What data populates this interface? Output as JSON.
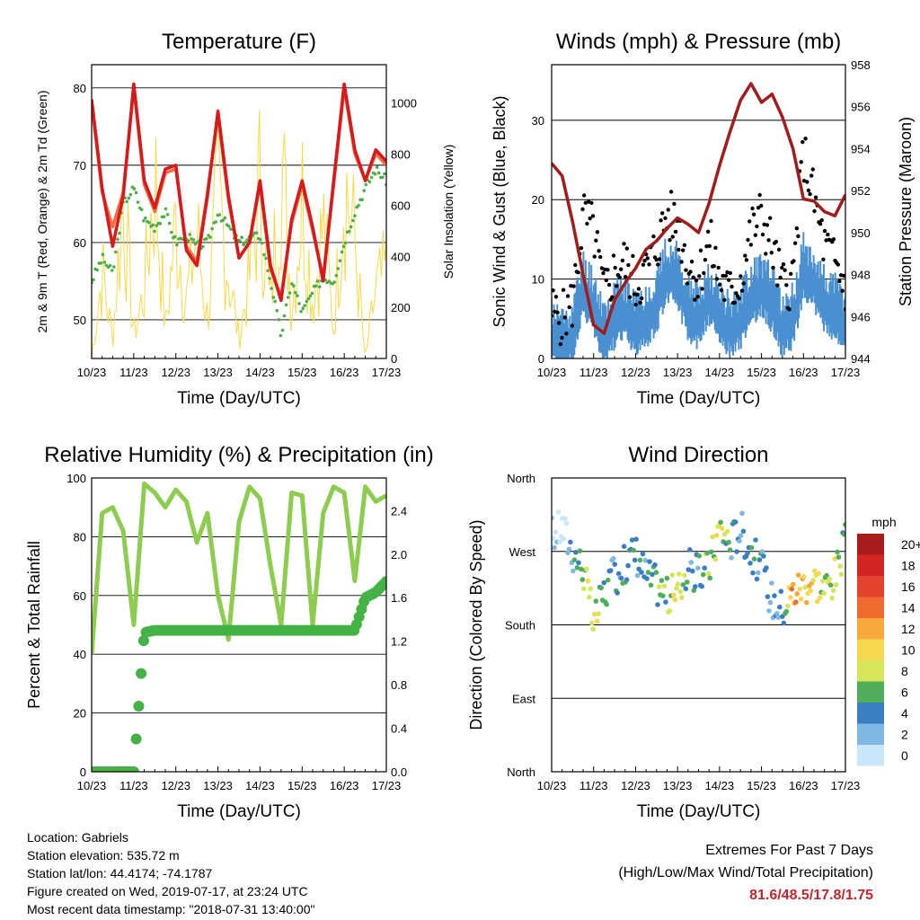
{
  "colors": {
    "temp2m": "#d7191c",
    "temp9m": "#f46d43",
    "dewpoint": "#4daf4a",
    "solar": "#f9d84a",
    "wind": "#4a90d0",
    "gust": "#000000",
    "pressure": "#a11c1c",
    "rh": "#8ccc4e",
    "precip": "#44b244",
    "highlight": "#c0282d"
  },
  "day_ticks": [
    "10/23",
    "11/23",
    "12/23",
    "13/23",
    "14/23",
    "15/23",
    "16/23",
    "17/23"
  ],
  "chart_data": [
    {
      "id": "temperature",
      "type": "line",
      "title": "Temperature (F)",
      "xlabel": "Time (Day/UTC)",
      "ylabel": "2m & 9m T (Red, Orange) & 2m Td (Green)",
      "y2label": "Solar Insolation (Yellow)",
      "xlim": [
        0,
        7
      ],
      "ylim": [
        45,
        83
      ],
      "y2lim": [
        0,
        1150
      ],
      "yticks": [
        50,
        60,
        70,
        80
      ],
      "y2ticks": [
        0,
        200,
        400,
        600,
        800,
        1000
      ],
      "grid": true,
      "x": [
        0,
        0.25,
        0.5,
        0.75,
        1,
        1.25,
        1.5,
        1.75,
        2,
        2.25,
        2.5,
        2.75,
        3,
        3.25,
        3.5,
        3.75,
        4,
        4.25,
        4.5,
        4.75,
        5,
        5.25,
        5.5,
        5.75,
        6,
        6.25,
        6.5,
        6.75,
        7
      ],
      "series": [
        {
          "name": "2m T",
          "axis": "left",
          "values": [
            78.5,
            67,
            59.5,
            66,
            80.5,
            68,
            64.5,
            69.5,
            70,
            59,
            57,
            66,
            77,
            66,
            58,
            60,
            68,
            57,
            52.5,
            63,
            68,
            62,
            55,
            68,
            80.5,
            72,
            68,
            72,
            70.5
          ]
        },
        {
          "name": "9m T",
          "axis": "left",
          "values": [
            78,
            66.5,
            62,
            66.5,
            80,
            67.5,
            64,
            69,
            69.5,
            59.5,
            57.5,
            66.5,
            76.5,
            65.5,
            58,
            60,
            67.5,
            56.5,
            53,
            62.5,
            67.5,
            61.5,
            55.5,
            67.5,
            80,
            71.5,
            68,
            71.5,
            70
          ]
        },
        {
          "name": "2m Td",
          "axis": "left",
          "values": [
            55,
            58,
            56,
            65,
            67,
            63,
            62,
            64,
            60,
            61,
            59.5,
            60,
            64,
            62,
            60,
            60.5,
            61,
            55,
            48,
            55,
            51,
            53.5,
            55.5,
            55,
            60,
            64,
            67,
            69.5,
            68
          ]
        },
        {
          "name": "Solar",
          "axis": "right",
          "values": [
            0,
            450,
            100,
            850,
            120,
            350,
            950,
            150,
            700,
            300,
            650,
            200,
            850,
            450,
            100,
            420,
            900,
            250,
            1100,
            250,
            850,
            300,
            700,
            150,
            950,
            600,
            0,
            350,
            450
          ]
        }
      ]
    },
    {
      "id": "winds",
      "type": "scatter",
      "title": "Winds (mph) & Pressure (mb)",
      "xlabel": "Time (Day/UTC)",
      "ylabel": "Sonic Wind & Gust (Blue, Black)",
      "y2label": "Station Pressure (Maroon)",
      "xlim": [
        0,
        7
      ],
      "ylim": [
        0,
        37
      ],
      "y2lim": [
        944,
        958
      ],
      "yticks": [
        0,
        10,
        20,
        30
      ],
      "y2ticks": [
        944,
        946,
        948,
        950,
        952,
        954,
        956,
        958
      ],
      "grid": true,
      "x": [
        0,
        0.25,
        0.5,
        0.75,
        1,
        1.25,
        1.5,
        1.75,
        2,
        2.25,
        2.5,
        2.75,
        3,
        3.25,
        3.5,
        3.75,
        4,
        4.25,
        4.5,
        4.75,
        5,
        5.25,
        5.5,
        5.75,
        6,
        6.25,
        6.5,
        6.75,
        7
      ],
      "series": [
        {
          "name": "Sonic Wind",
          "axis": "left",
          "values": [
            4,
            3,
            4,
            10,
            8,
            4,
            6,
            7,
            5,
            6,
            8,
            12,
            11,
            7,
            6,
            9,
            6,
            5,
            6,
            9,
            10,
            8,
            5,
            6,
            12,
            11,
            8,
            7,
            5
          ]
        },
        {
          "name": "Gust",
          "axis": "left",
          "values": [
            6,
            5,
            7,
            18,
            16,
            8,
            11,
            12,
            9,
            11,
            14,
            18,
            17,
            12,
            10,
            15,
            10,
            8,
            10,
            16,
            18,
            14,
            9,
            10,
            26,
            20,
            14,
            12,
            9
          ]
        },
        {
          "name": "Station Pressure",
          "axis": "right",
          "values": [
            953.3,
            952.7,
            950.5,
            948,
            945.6,
            945.2,
            946.8,
            947.6,
            948.3,
            949.2,
            949.6,
            950.2,
            950.7,
            950.4,
            950.0,
            951.4,
            953.2,
            954.8,
            956.3,
            957.1,
            956.2,
            956.6,
            955.5,
            954.0,
            951.6,
            951.5,
            951.0,
            950.8,
            951.8
          ]
        }
      ]
    },
    {
      "id": "humidity",
      "type": "line",
      "title": "Relative Humidity (%) & Precipitation (in)",
      "xlabel": "Time (Day/UTC)",
      "ylabel": "Percent & Total Rainfall",
      "xlim": [
        0,
        7
      ],
      "ylim": [
        0,
        100
      ],
      "y2lim": [
        0,
        2.7
      ],
      "yticks": [
        0,
        20,
        40,
        60,
        80,
        100
      ],
      "y2ticks": [
        "0.0",
        "0.4",
        "0.8",
        "1.2",
        "1.6",
        "2.0",
        "2.4"
      ],
      "grid": true,
      "x": [
        0,
        0.25,
        0.5,
        0.75,
        1,
        1.25,
        1.5,
        1.75,
        2,
        2.25,
        2.5,
        2.75,
        3,
        3.25,
        3.5,
        3.75,
        4,
        4.25,
        4.5,
        4.75,
        5,
        5.25,
        5.5,
        5.75,
        6,
        6.25,
        6.5,
        6.75,
        7
      ],
      "series": [
        {
          "name": "Relative Humidity",
          "axis": "left",
          "values": [
            40,
            88,
            90,
            82,
            50,
            98,
            95,
            90,
            96,
            92,
            78,
            88,
            60,
            45,
            85,
            97,
            93,
            70,
            50,
            95,
            94,
            50,
            88,
            97,
            95,
            65,
            97,
            92,
            94
          ]
        },
        {
          "name": "Total Precipitation",
          "axis": "right",
          "values": [
            0,
            0,
            0,
            0,
            0,
            1.28,
            1.3,
            1.3,
            1.3,
            1.3,
            1.3,
            1.3,
            1.3,
            1.3,
            1.3,
            1.3,
            1.3,
            1.3,
            1.3,
            1.3,
            1.3,
            1.3,
            1.3,
            1.3,
            1.3,
            1.3,
            1.6,
            1.65,
            1.75
          ]
        }
      ]
    },
    {
      "id": "direction",
      "type": "scatter",
      "title": "Wind Direction",
      "xlabel": "Time (Day/UTC)",
      "ylabel": "Direction (Colored By Speed)",
      "xlim": [
        0,
        7
      ],
      "ylim": [
        0,
        360
      ],
      "ytick_labels": [
        "North",
        "East",
        "South",
        "West",
        "North"
      ],
      "grid": true,
      "legend_title": "mph",
      "legend_labels": [
        "20+",
        "18",
        "16",
        "14",
        "12",
        "10",
        "8",
        "6",
        "4",
        "2",
        "0"
      ],
      "legend_colors": [
        "#a81c1c",
        "#d42424",
        "#e3422c",
        "#f06a2e",
        "#f9a83c",
        "#f6d84e",
        "#d6e55a",
        "#4fae5a",
        "#3a7fbf",
        "#7fb8e3",
        "#c8e6f7"
      ],
      "x": [
        0,
        0.25,
        0.5,
        0.75,
        1,
        1.25,
        1.5,
        1.75,
        2,
        2.25,
        2.5,
        2.75,
        3,
        3.25,
        3.5,
        3.75,
        4,
        4.25,
        4.5,
        4.75,
        5,
        5.25,
        5.5,
        5.75,
        6,
        6.25,
        6.5,
        6.75,
        7
      ],
      "series": [
        {
          "name": "Direction",
          "values": [
            290,
            300,
            270,
            250,
            180,
            220,
            240,
            255,
            270,
            240,
            230,
            215,
            220,
            250,
            240,
            250,
            300,
            280,
            300,
            270,
            250,
            210,
            200,
            220,
            230,
            235,
            225,
            240,
            280
          ]
        },
        {
          "name": "Speed",
          "values": [
            2,
            2,
            4,
            8,
            10,
            6,
            5,
            6,
            6,
            5,
            6,
            8,
            10,
            6,
            5,
            8,
            10,
            6,
            4,
            6,
            5,
            3,
            6,
            14,
            12,
            10,
            8,
            10,
            6
          ]
        }
      ]
    }
  ],
  "info": {
    "location": "Location: Gabriels",
    "elevation": "Station elevation: 535.72 m",
    "latlon": "Station lat/lon: 44.4174; -74.1787",
    "created": "Figure created on Wed, 2019-07-17, at 23:24 UTC",
    "recent": "Most recent data timestamp: \"2018-07-31 13:40:00\""
  },
  "extremes": {
    "title": "Extremes For Past 7 Days",
    "subtitle": "(High/Low/Max Wind/Total Precipitation)",
    "values": "81.6/48.5/17.8/1.75"
  }
}
